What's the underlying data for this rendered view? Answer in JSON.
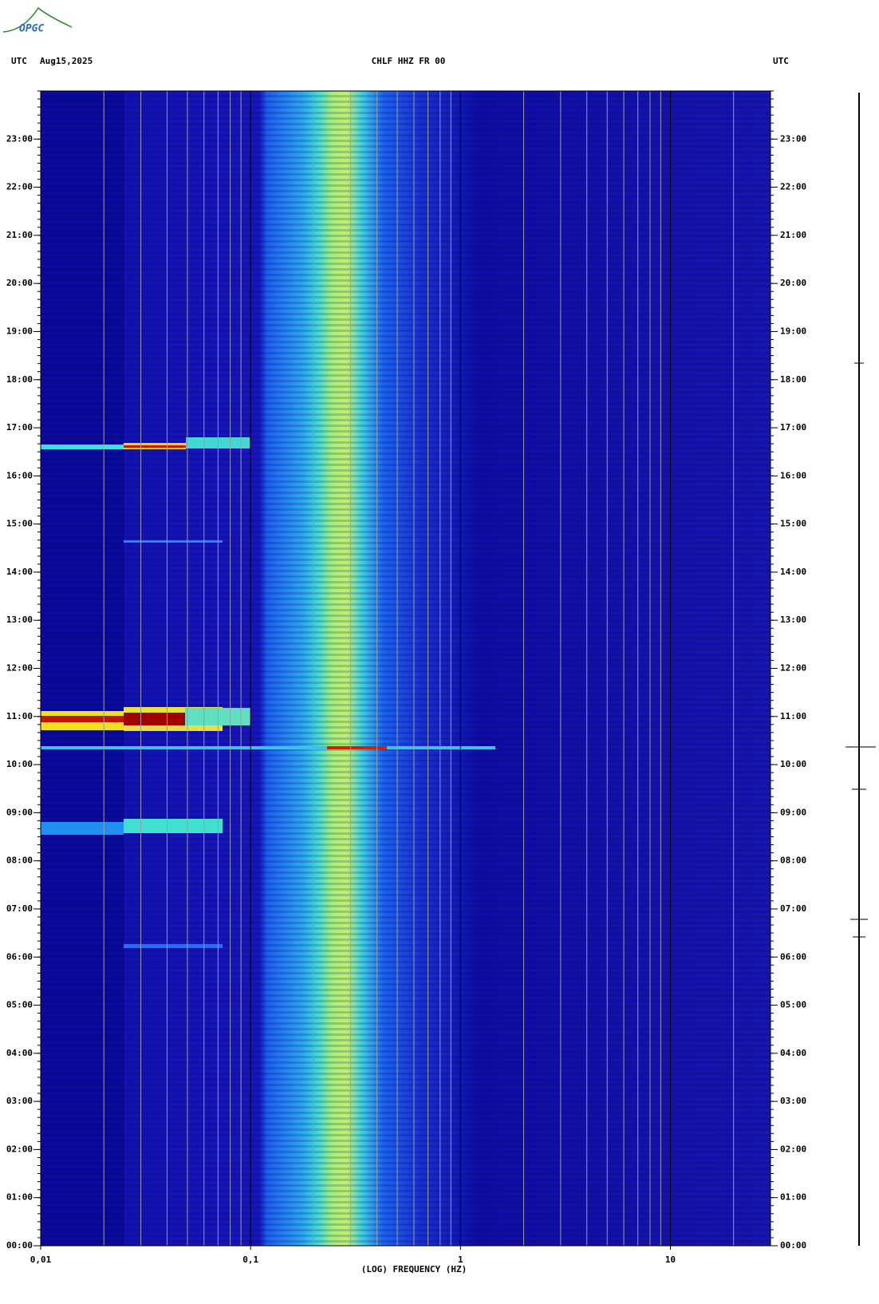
{
  "header": {
    "logo": "OPGC",
    "left_timezone": "UTC",
    "date": "Aug15,2025",
    "station": "CHLF HHZ FR 00",
    "right_timezone": "UTC"
  },
  "chart_data": {
    "type": "spectrogram",
    "x_label": "(LOG) FREQUENCY (HZ)",
    "x_scale": "log",
    "xlim": [
      0.01,
      30
    ],
    "xticks": [
      {
        "value": 0.01,
        "label": "0,01"
      },
      {
        "value": 0.1,
        "label": "0,1"
      },
      1,
      10
    ],
    "ylim": [
      0,
      24
    ],
    "yticks": [
      {
        "value": 0,
        "label": "00:00"
      },
      {
        "value": 1,
        "label": "01:00"
      },
      {
        "value": 2,
        "label": "02:00"
      },
      {
        "value": 3,
        "label": "03:00"
      },
      {
        "value": 4,
        "label": "04:00"
      },
      {
        "value": 5,
        "label": "05:00"
      },
      {
        "value": 6,
        "label": "06:00"
      },
      {
        "value": 7,
        "label": "07:00"
      },
      {
        "value": 8,
        "label": "08:00"
      },
      {
        "value": 9,
        "label": "09:00"
      },
      {
        "value": 10,
        "label": "10:00"
      },
      {
        "value": 11,
        "label": "11:00"
      },
      {
        "value": 12,
        "label": "12:00"
      },
      {
        "value": 13,
        "label": "13:00"
      },
      {
        "value": 14,
        "label": "14:00"
      },
      {
        "value": 15,
        "label": "15:00"
      },
      {
        "value": 16,
        "label": "16:00"
      },
      {
        "value": 17,
        "label": "17:00"
      },
      {
        "value": 18,
        "label": "18:00"
      },
      {
        "value": 19,
        "label": "19:00"
      },
      {
        "value": 20,
        "label": "20:00"
      },
      {
        "value": 21,
        "label": "21:00"
      },
      {
        "value": 22,
        "label": "22:00"
      },
      {
        "value": 23,
        "label": "23:00"
      }
    ]
  }
}
